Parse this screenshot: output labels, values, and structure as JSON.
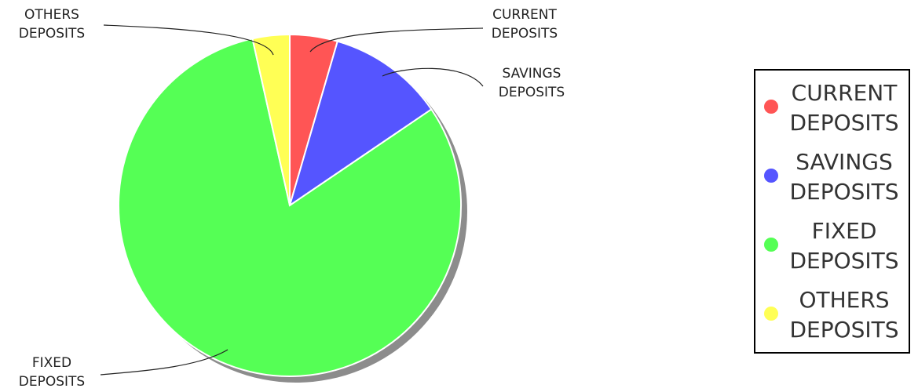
{
  "chart_data": {
    "type": "pie",
    "legend_position": "right",
    "slices": [
      {
        "label_lines": [
          "CURRENT",
          "DEPOSITS"
        ],
        "value": 4.5,
        "color": "#ff5555"
      },
      {
        "label_lines": [
          "SAVINGS",
          "DEPOSITS"
        ],
        "value": 11.0,
        "color": "#5555ff"
      },
      {
        "label_lines": [
          "FIXED",
          "DEPOSITS"
        ],
        "value": 81.0,
        "color": "#55ff55"
      },
      {
        "label_lines": [
          "OTHERS",
          "DEPOSITS"
        ],
        "value": 3.5,
        "color": "#ffff55"
      }
    ]
  }
}
